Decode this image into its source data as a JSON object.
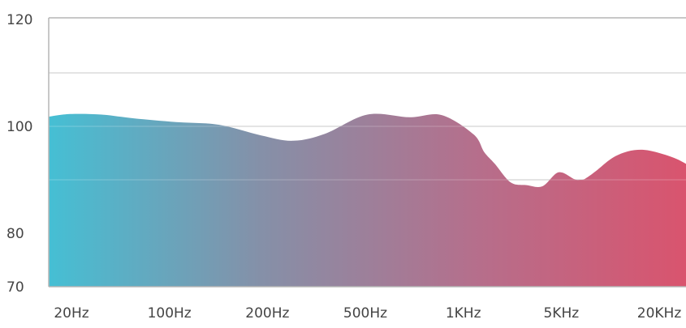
{
  "chart_data": {
    "type": "area",
    "title": "",
    "xlabel": "",
    "ylabel": "",
    "x_ticks": [
      "20Hz",
      "100Hz",
      "200Hz",
      "500Hz",
      "1KHz",
      "5KHz",
      "20KHz"
    ],
    "y_ticks": [
      70,
      80,
      100,
      120
    ],
    "grid_lines_y": [
      90,
      100,
      110
    ],
    "grid": true,
    "gradient": [
      "#45bfd4",
      "#8590a8",
      "#b56f8c",
      "#d9546e"
    ],
    "series": [
      {
        "x": [
          0,
          0.2,
          0.5,
          0.8,
          1.2,
          1.6,
          2.0,
          2.3,
          2.6,
          3.0,
          3.4,
          3.7,
          4.0,
          4.1,
          4.2,
          4.35,
          4.5,
          4.65,
          4.8,
          4.95,
          5.0,
          5.05,
          5.15,
          5.3,
          5.45,
          5.6,
          5.75,
          5.9,
          6.0
        ],
        "values": [
          101.8,
          102.3,
          102.2,
          101.5,
          100.8,
          100.3,
          98.3,
          97.3,
          98.6,
          102.2,
          101.7,
          102.1,
          98.5,
          95.2,
          93.0,
          89.5,
          89.0,
          88.8,
          91.4,
          90.1,
          90.0,
          90.2,
          91.6,
          94.0,
          95.3,
          95.6,
          95.0,
          94.0,
          93.0
        ]
      }
    ]
  }
}
